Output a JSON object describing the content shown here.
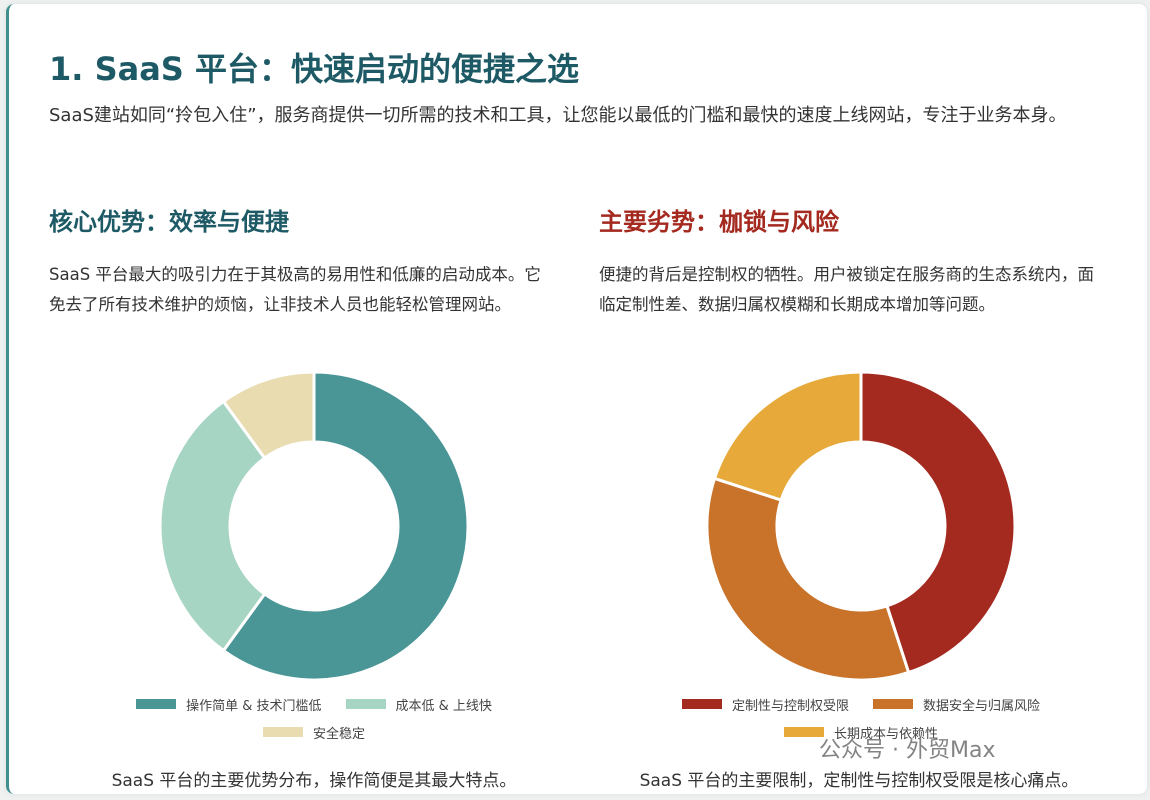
{
  "header": {
    "title": "1. SaaS 平台：快速启动的便捷之选",
    "intro": "SaaS建站如同“拎包入住”，服务商提供一切所需的技术和工具，让您能以最低的门槛和最快的速度上线网站，专注于业务本身。"
  },
  "sections": [
    {
      "heading": "核心优势：效率与便捷",
      "body": "SaaS 平台最大的吸引力在于其极高的易用性和低廉的启动成本。它免去了所有技术维护的烦恼，让非技术人员也能轻松管理网站。",
      "caption": "SaaS 平台的主要优势分布，操作简便是其最大特点。"
    },
    {
      "heading": "主要劣势：枷锁与风险",
      "body": "便捷的背后是控制权的牺牲。用户被锁定在服务商的生态系统内，面临定制性差、数据归属权模糊和长期成本增加等问题。",
      "caption": "SaaS 平台的主要限制，定制性与控制权受限是核心痛点。"
    }
  ],
  "chart_data": [
    {
      "type": "pie",
      "donut": true,
      "categories": [
        "操作简单 & 技术门槛低",
        "成本低 & 上线快",
        "安全稳定"
      ],
      "values": [
        60,
        30,
        10
      ],
      "colors": [
        "#4a9596",
        "#a7d5c4",
        "#e8dcb0"
      ]
    },
    {
      "type": "pie",
      "donut": true,
      "categories": [
        "定制性与控制权受限",
        "数据安全与归属风险",
        "长期成本与依赖性"
      ],
      "values": [
        45,
        35,
        20
      ],
      "colors": [
        "#a4291f",
        "#c8722a",
        "#e6a93a"
      ]
    }
  ],
  "watermark": "公众号 · 外贸Max"
}
